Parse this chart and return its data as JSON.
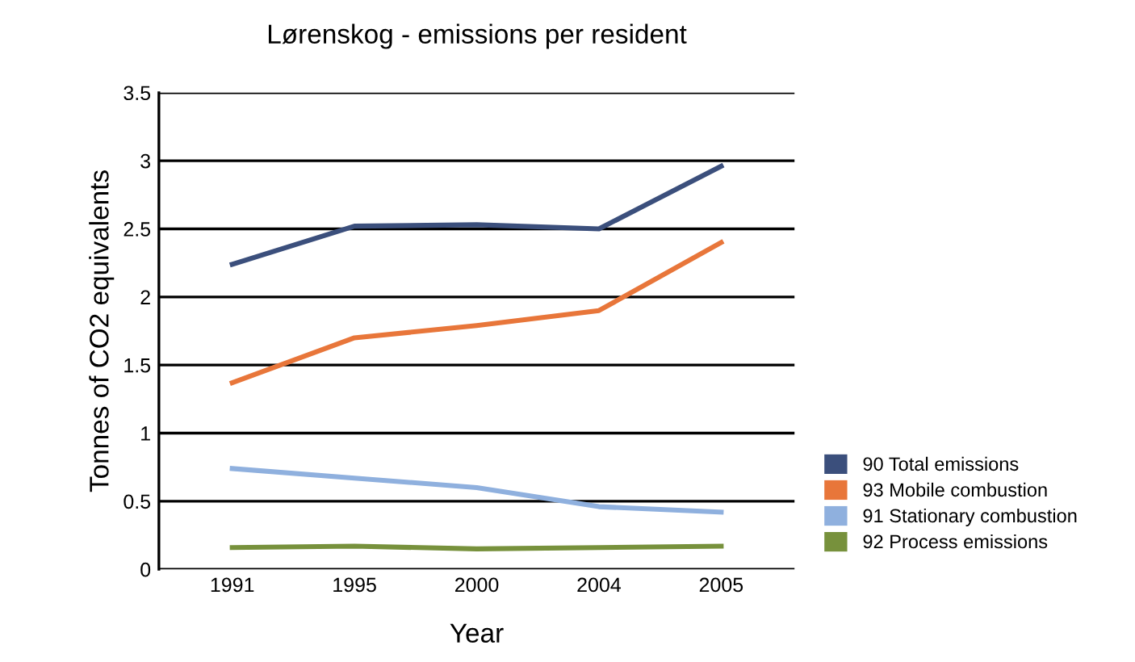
{
  "chart_data": {
    "type": "line",
    "title": "Lørenskog - emissions per resident",
    "xlabel": "Year",
    "ylabel": "Tonnes of CO2 equivalents",
    "categories": [
      "1991",
      "1995",
      "2000",
      "2004",
      "2005"
    ],
    "series": [
      {
        "name": "90 Total emissions",
        "color": "#3b4f7c",
        "values": [
          2.24,
          2.52,
          2.53,
          2.5,
          2.96
        ]
      },
      {
        "name": "93 Mobile combustion",
        "color": "#e8763a",
        "values": [
          1.37,
          1.7,
          1.79,
          1.9,
          2.4
        ]
      },
      {
        "name": "91 Stationary combustion",
        "color": "#8fb0de",
        "values": [
          0.74,
          0.67,
          0.6,
          0.46,
          0.42
        ]
      },
      {
        "name": "92 Process emissions",
        "color": "#77913c",
        "values": [
          0.16,
          0.17,
          0.15,
          0.16,
          0.17
        ]
      }
    ],
    "ylim": [
      0,
      3.5
    ],
    "yticks": [
      0,
      0.5,
      1,
      1.5,
      2,
      2.5,
      3,
      3.5
    ],
    "grid": "y",
    "legend": "bottom right",
    "marker": "none",
    "line_style": "solid"
  }
}
